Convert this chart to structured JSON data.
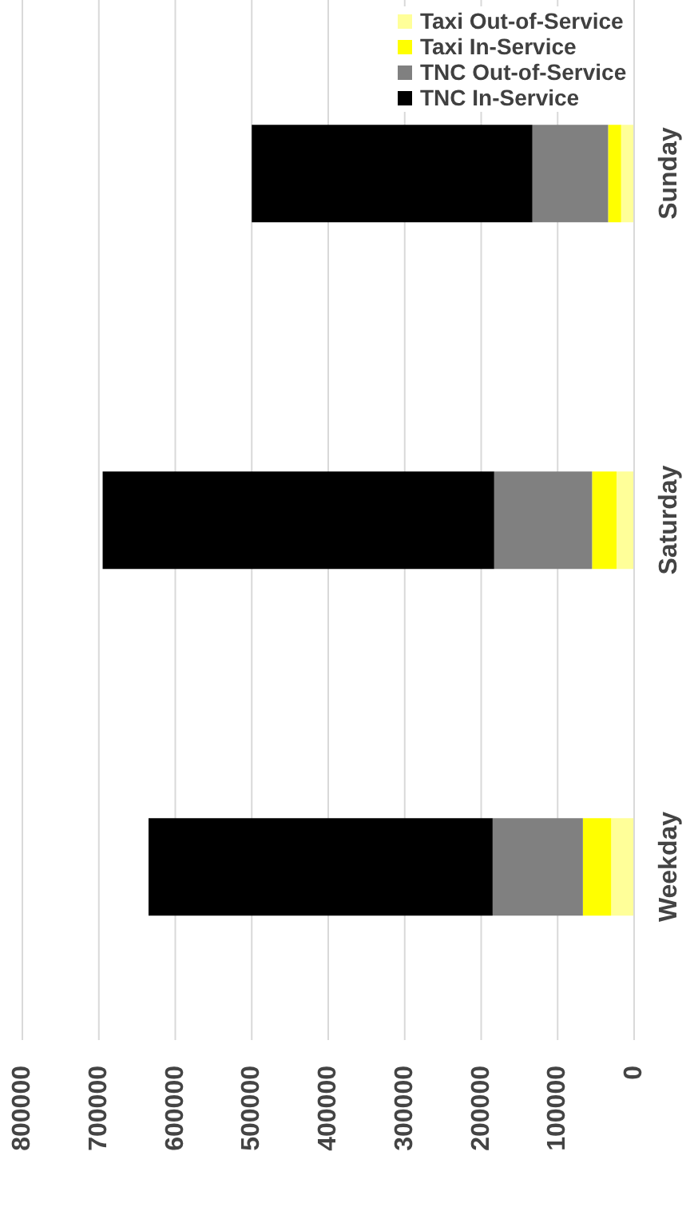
{
  "chart_data": {
    "type": "bar",
    "stacked": true,
    "orientation": "horizontal",
    "categories": [
      "Sunday",
      "Saturday",
      "Weekday"
    ],
    "series": [
      {
        "name": "Taxi Out-of-Service",
        "color": "#ffff99",
        "values": [
          17000,
          23000,
          30000
        ]
      },
      {
        "name": "Taxi In-Service",
        "color": "#ffff00",
        "values": [
          17000,
          32000,
          37000
        ]
      },
      {
        "name": "TNC Out-of-Service",
        "color": "#808080",
        "values": [
          99000,
          128000,
          118000
        ]
      },
      {
        "name": "TNC In-Service",
        "color": "#000000",
        "values": [
          367000,
          512000,
          450000
        ]
      }
    ],
    "xlim": [
      800000,
      0
    ],
    "xticks": [
      0,
      100000,
      200000,
      300000,
      400000,
      500000,
      600000,
      700000,
      800000
    ],
    "grid": "x",
    "legend": "top right"
  }
}
